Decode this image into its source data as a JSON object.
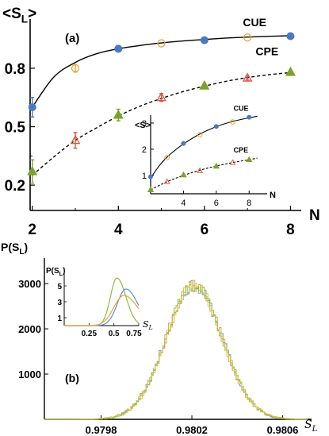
{
  "colors": {
    "cue": "#4a78c2",
    "cpe_green": "#7aa32b",
    "open_orange": "#e8a63a",
    "open_red": "#e0553a",
    "hist_blue": "#5b8fd6",
    "hist_orange": "#e8a33a",
    "hist_green": "#8cbf3a",
    "hist_yellow": "#d8c23a",
    "axis": "#000000"
  },
  "chart_data": [
    {
      "id": "panel-a",
      "type": "scatter",
      "panel_label": "(a)",
      "ylabel_main": "<S",
      "ylabel_sub": "L",
      "ylabel_end": ">",
      "xlabel": "N",
      "xticks": [
        2,
        4,
        6,
        8
      ],
      "yticks": [
        0.2,
        0.5,
        0.8
      ],
      "ytick_labels": [
        "0.2",
        "0.5",
        "0.8"
      ],
      "xlim": [
        1.95,
        8.25
      ],
      "ylim": [
        0.07,
        1.02
      ],
      "series": [
        {
          "name": "CUE",
          "curve": "solid",
          "curve_x": [
            2,
            2.5,
            3,
            3.5,
            4,
            4.5,
            5,
            5.5,
            6,
            6.5,
            7,
            7.5,
            8
          ],
          "curve_y": [
            0.6,
            0.755,
            0.83,
            0.875,
            0.9,
            0.917,
            0.93,
            0.94,
            0.948,
            0.955,
            0.96,
            0.964,
            0.967
          ],
          "filled": {
            "x": [
              2,
              4,
              6,
              8
            ],
            "y": [
              0.6,
              0.9,
              0.944,
              0.965
            ],
            "err": [
              0.05,
              0,
              0,
              0
            ]
          },
          "open": {
            "x": [
              3,
              5,
              7
            ],
            "y": [
              0.8,
              0.928,
              0.958
            ],
            "err": [
              0.02,
              0,
              0
            ]
          }
        },
        {
          "name": "CPE",
          "curve": "dashed",
          "curve_x": [
            2,
            2.5,
            3,
            3.5,
            4,
            4.5,
            5,
            5.5,
            6,
            6.5,
            7,
            7.5,
            8
          ],
          "curve_y": [
            0.25,
            0.345,
            0.43,
            0.495,
            0.555,
            0.605,
            0.645,
            0.68,
            0.708,
            0.733,
            0.752,
            0.767,
            0.778
          ],
          "filled": {
            "x": [
              2,
              4,
              6,
              8
            ],
            "y": [
              0.27,
              0.56,
              0.71,
              0.78
            ],
            "err": [
              0.06,
              0.03,
              0,
              0
            ]
          },
          "open": {
            "x": [
              3,
              5,
              7
            ],
            "y": [
              0.43,
              0.65,
              0.75
            ],
            "err": [
              0.04,
              0.02,
              0.01
            ]
          }
        }
      ]
    },
    {
      "id": "panel-a-inset",
      "type": "scatter",
      "ylabel": "<S>",
      "xlabel": "N",
      "xticks": [
        4,
        6,
        8
      ],
      "yticks": [
        1,
        2,
        3
      ],
      "xlim": [
        2,
        9.1
      ],
      "ylim": [
        0.3,
        3.3
      ],
      "series": [
        {
          "name": "CUE",
          "curve": "solid",
          "curve_x": [
            2,
            2.5,
            3,
            3.5,
            4,
            5,
            6,
            7,
            8,
            8.5
          ],
          "curve_y": [
            0.9,
            1.35,
            1.7,
            1.97,
            2.2,
            2.58,
            2.86,
            3.06,
            3.2,
            3.26
          ],
          "filled": {
            "x": [
              2,
              4,
              6,
              8
            ],
            "y": [
              0.95,
              2.22,
              2.87,
              3.22
            ]
          },
          "open": {
            "x": [
              3,
              5,
              7
            ],
            "y": [
              1.68,
              2.55,
              3.04
            ]
          }
        },
        {
          "name": "CPE",
          "curve": "dashed",
          "curve_x": [
            2,
            3,
            4,
            5,
            6,
            7,
            8,
            8.5
          ],
          "curve_y": [
            0.45,
            0.76,
            1.0,
            1.2,
            1.36,
            1.49,
            1.6,
            1.66
          ],
          "filled": {
            "x": [
              2,
              4,
              6,
              8
            ],
            "y": [
              0.45,
              1.02,
              1.35,
              1.6
            ]
          },
          "open": {
            "x": [
              3,
              5,
              7
            ],
            "y": [
              0.76,
              1.18,
              1.49
            ]
          }
        }
      ]
    },
    {
      "id": "panel-b",
      "type": "histogram",
      "panel_label": "(b)",
      "ylabel_main": "P(S",
      "ylabel_sub": "L",
      "ylabel_end": ")",
      "xlabel_main": "S",
      "xlabel_sub": "L",
      "xticks": [
        0.9798,
        0.9802,
        0.9806
      ],
      "xtick_labels": [
        "0.9798",
        "0.9802",
        "0.9806"
      ],
      "yticks": [
        1000,
        2000,
        3000
      ],
      "xlim": [
        0.97955,
        0.98071
      ],
      "ylim": [
        0,
        3300
      ],
      "center": 0.98021,
      "sigma": 0.000125,
      "peak": 2950,
      "bins": 140,
      "series": [
        {
          "name": "",
          "color_key": "hist_blue",
          "seed": 11
        },
        {
          "name": "",
          "color_key": "hist_orange",
          "seed": 23
        },
        {
          "name": "",
          "color_key": "hist_green",
          "seed": 37
        },
        {
          "name": "",
          "color_key": "hist_yellow",
          "seed": 51
        }
      ]
    },
    {
      "id": "panel-b-inset",
      "type": "line",
      "ylabel_main": "P(S",
      "ylabel_sub": "L",
      "ylabel_end": ")",
      "xlabel_main": "S",
      "xlabel_sub": "L",
      "xticks": [
        0.25,
        0.5,
        0.75
      ],
      "xtick_labels": [
        "0.25",
        "0.5",
        "0.75"
      ],
      "yticks": [
        1,
        3,
        5
      ],
      "xlim": [
        0,
        0.75
      ],
      "ylim": [
        0,
        7.3
      ],
      "series": [
        {
          "name": "",
          "color_key": "hist_green",
          "mode": 0.53,
          "sigma": 0.065,
          "peak": 6.0
        },
        {
          "name": "",
          "color_key": "hist_blue",
          "mode": 0.62,
          "sigma": 0.085,
          "peak": 4.6
        },
        {
          "name": "",
          "color_key": "hist_orange",
          "mode": 0.6,
          "sigma": 0.1,
          "peak": 3.8
        }
      ]
    }
  ]
}
